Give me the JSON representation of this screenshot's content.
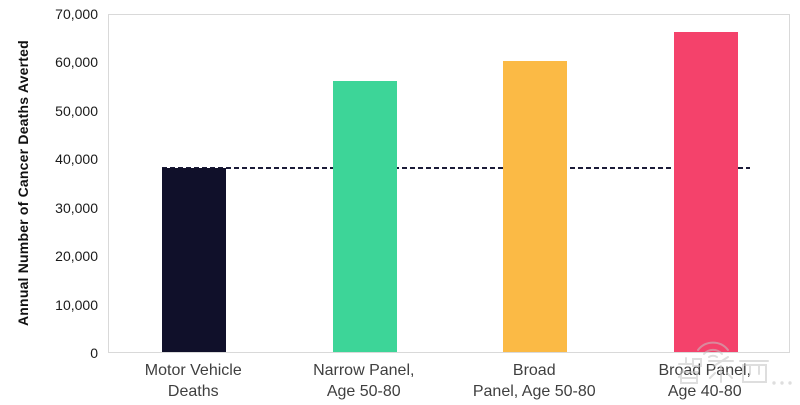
{
  "page": {
    "background": "#ffffff"
  },
  "chart_data": {
    "type": "bar",
    "title": "",
    "xlabel": "",
    "ylabel": "Annual Number of Cancer Deaths Averted",
    "ylim": [
      0,
      70000
    ],
    "yticks": [
      0,
      10000,
      20000,
      30000,
      40000,
      50000,
      60000,
      70000
    ],
    "ytick_labels": [
      "0",
      "10,000",
      "20,000",
      "30,000",
      "40,000",
      "50,000",
      "60,000",
      "70,000"
    ],
    "grid": false,
    "legend": null,
    "categories": [
      "Motor Vehicle Deaths",
      "Narrow Panel, Age 50-80",
      "Broad Panel, Age 50-80",
      "Broad Panel, Age 40-80"
    ],
    "category_label_lines": [
      [
        "Motor Vehicle",
        "Deaths"
      ],
      [
        "Narrow Panel,",
        "Age 50-80"
      ],
      [
        "Broad",
        "Panel, Age 50-80"
      ],
      [
        "Broad Panel,",
        "Age 40-80"
      ]
    ],
    "values": [
      38000,
      56000,
      60000,
      66000
    ],
    "bar_colors": [
      "#10102a",
      "#3dd598",
      "#fbba45",
      "#f4426b"
    ],
    "reference_line": {
      "value": 38000,
      "style": "dashed",
      "color": "#1b1b38"
    }
  },
  "watermark": {
    "text": "智东西",
    "suffix": "com"
  }
}
